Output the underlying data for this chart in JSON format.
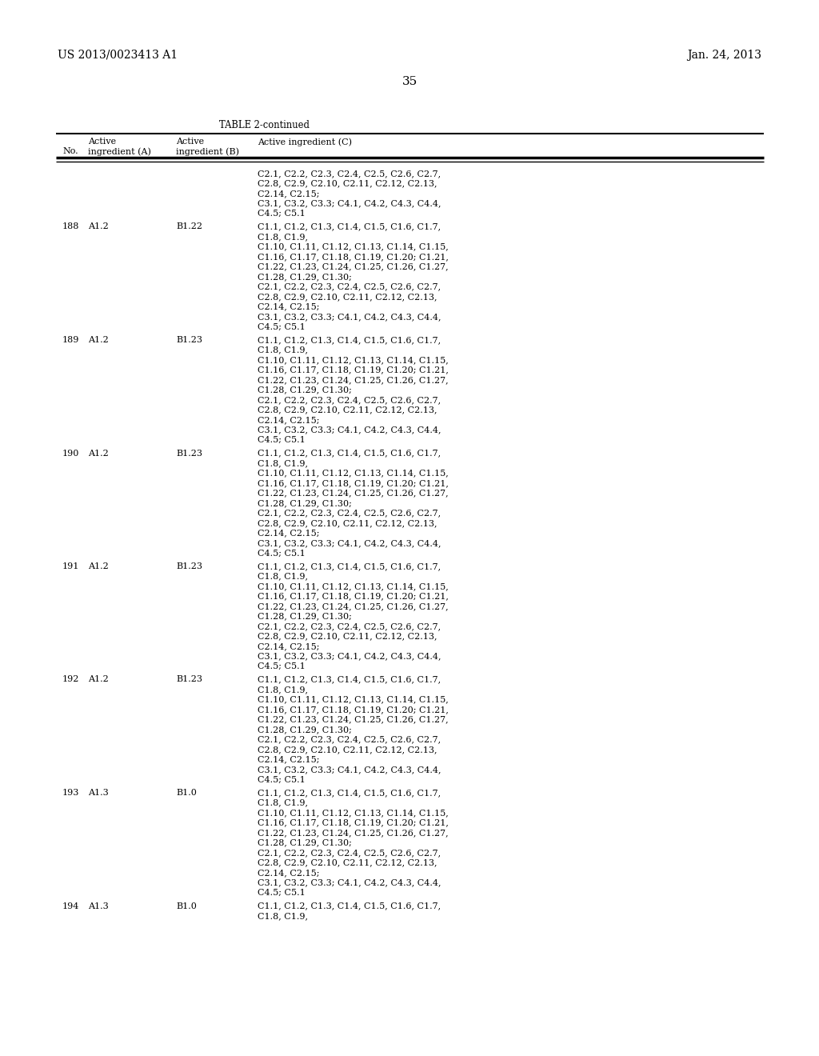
{
  "header_left": "US 2013/0023413 A1",
  "header_right": "Jan. 24, 2013",
  "page_number": "35",
  "table_title": "TABLE 2-continued",
  "bg_color": "#ffffff",
  "text_color": "#000000",
  "font_size": 8.0,
  "header_font_size": 10.0,
  "rows": [
    {
      "no": "",
      "a": "",
      "b": "",
      "c_lines": [
        "C2.1, C2.2, C2.3, C2.4, C2.5, C2.6, C2.7,",
        "C2.8, C2.9, C2.10, C2.11, C2.12, C2.13,",
        "C2.14, C2.15;",
        "C3.1, C3.2, C3.3; C4.1, C4.2, C4.3, C4.4,",
        "C4.5; C5.1"
      ]
    },
    {
      "no": "188",
      "a": "A1.2",
      "b": "B1.22",
      "c_lines": [
        "C1.1, C1.2, C1.3, C1.4, C1.5, C1.6, C1.7,",
        "C1.8, C1.9,",
        "C1.10, C1.11, C1.12, C1.13, C1.14, C1.15,",
        "C1.16, C1.17, C1.18, C1.19, C1.20; C1.21,",
        "C1.22, C1.23, C1.24, C1.25, C1.26, C1.27,",
        "C1.28, C1.29, C1.30;",
        "C2.1, C2.2, C2.3, C2.4, C2.5, C2.6, C2.7,",
        "C2.8, C2.9, C2.10, C2.11, C2.12, C2.13,",
        "C2.14, C2.15;",
        "C3.1, C3.2, C3.3; C4.1, C4.2, C4.3, C4.4,",
        "C4.5; C5.1"
      ]
    },
    {
      "no": "189",
      "a": "A1.2",
      "b": "B1.23",
      "c_lines": [
        "C1.1, C1.2, C1.3, C1.4, C1.5, C1.6, C1.7,",
        "C1.8, C1.9,",
        "C1.10, C1.11, C1.12, C1.13, C1.14, C1.15,",
        "C1.16, C1.17, C1.18, C1.19, C1.20; C1.21,",
        "C1.22, C1.23, C1.24, C1.25, C1.26, C1.27,",
        "C1.28, C1.29, C1.30;",
        "C2.1, C2.2, C2.3, C2.4, C2.5, C2.6, C2.7,",
        "C2.8, C2.9, C2.10, C2.11, C2.12, C2.13,",
        "C2.14, C2.15;",
        "C3.1, C3.2, C3.3; C4.1, C4.2, C4.3, C4.4,",
        "C4.5; C5.1"
      ]
    },
    {
      "no": "190",
      "a": "A1.2",
      "b": "B1.23",
      "c_lines": [
        "C1.1, C1.2, C1.3, C1.4, C1.5, C1.6, C1.7,",
        "C1.8, C1.9,",
        "C1.10, C1.11, C1.12, C1.13, C1.14, C1.15,",
        "C1.16, C1.17, C1.18, C1.19, C1.20; C1.21,",
        "C1.22, C1.23, C1.24, C1.25, C1.26, C1.27,",
        "C1.28, C1.29, C1.30;",
        "C2.1, C2.2, C2.3, C2.4, C2.5, C2.6, C2.7,",
        "C2.8, C2.9, C2.10, C2.11, C2.12, C2.13,",
        "C2.14, C2.15;",
        "C3.1, C3.2, C3.3; C4.1, C4.2, C4.3, C4.4,",
        "C4.5; C5.1"
      ]
    },
    {
      "no": "191",
      "a": "A1.2",
      "b": "B1.23",
      "c_lines": [
        "C1.1, C1.2, C1.3, C1.4, C1.5, C1.6, C1.7,",
        "C1.8, C1.9,",
        "C1.10, C1.11, C1.12, C1.13, C1.14, C1.15,",
        "C1.16, C1.17, C1.18, C1.19, C1.20; C1.21,",
        "C1.22, C1.23, C1.24, C1.25, C1.26, C1.27,",
        "C1.28, C1.29, C1.30;",
        "C2.1, C2.2, C2.3, C2.4, C2.5, C2.6, C2.7,",
        "C2.8, C2.9, C2.10, C2.11, C2.12, C2.13,",
        "C2.14, C2.15;",
        "C3.1, C3.2, C3.3; C4.1, C4.2, C4.3, C4.4,",
        "C4.5; C5.1"
      ]
    },
    {
      "no": "192",
      "a": "A1.2",
      "b": "B1.23",
      "c_lines": [
        "C1.1, C1.2, C1.3, C1.4, C1.5, C1.6, C1.7,",
        "C1.8, C1.9,",
        "C1.10, C1.11, C1.12, C1.13, C1.14, C1.15,",
        "C1.16, C1.17, C1.18, C1.19, C1.20; C1.21,",
        "C1.22, C1.23, C1.24, C1.25, C1.26, C1.27,",
        "C1.28, C1.29, C1.30;",
        "C2.1, C2.2, C2.3, C2.4, C2.5, C2.6, C2.7,",
        "C2.8, C2.9, C2.10, C2.11, C2.12, C2.13,",
        "C2.14, C2.15;",
        "C3.1, C3.2, C3.3; C4.1, C4.2, C4.3, C4.4,",
        "C4.5; C5.1"
      ]
    },
    {
      "no": "193",
      "a": "A1.3",
      "b": "B1.0",
      "c_lines": [
        "C1.1, C1.2, C1.3, C1.4, C1.5, C1.6, C1.7,",
        "C1.8, C1.9,",
        "C1.10, C1.11, C1.12, C1.13, C1.14, C1.15,",
        "C1.16, C1.17, C1.18, C1.19, C1.20; C1.21,",
        "C1.22, C1.23, C1.24, C1.25, C1.26, C1.27,",
        "C1.28, C1.29, C1.30;",
        "C2.1, C2.2, C2.3, C2.4, C2.5, C2.6, C2.7,",
        "C2.8, C2.9, C2.10, C2.11, C2.12, C2.13,",
        "C2.14, C2.15;",
        "C3.1, C3.2, C3.3; C4.1, C4.2, C4.3, C4.4,",
        "C4.5; C5.1"
      ]
    },
    {
      "no": "194",
      "a": "A1.3",
      "b": "B1.0",
      "c_lines": [
        "C1.1, C1.2, C1.3, C1.4, C1.5, C1.6, C1.7,",
        "C1.8, C1.9,"
      ]
    }
  ]
}
